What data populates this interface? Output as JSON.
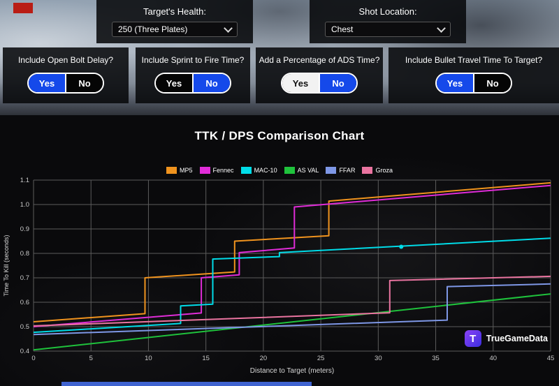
{
  "controls": {
    "targets_health": {
      "label": "Target's Health:",
      "value": "250 (Three Plates)"
    },
    "shot_location": {
      "label": "Shot Location:",
      "value": "Chest"
    }
  },
  "toggles": [
    {
      "label": "Include Open Bolt Delay?",
      "yes_label": "Yes",
      "no_label": "No",
      "yes_state": "blue",
      "no_state": "black",
      "selected": "Yes"
    },
    {
      "label": "Include Sprint to Fire Time?",
      "yes_label": "Yes",
      "no_label": "No",
      "yes_state": "black",
      "no_state": "blue",
      "selected": "No"
    },
    {
      "label": "Add a Percentage of ADS Time?",
      "yes_label": "Yes",
      "no_label": "No",
      "yes_state": "white",
      "no_state": "blue",
      "selected": "No"
    },
    {
      "label": "Include Bullet Travel Time To Target?",
      "yes_label": "Yes",
      "no_label": "No",
      "yes_state": "blue",
      "no_state": "black",
      "selected": "Yes"
    }
  ],
  "colors": {
    "toggle_active": "#1549ea",
    "logo_purple_1": "#8a42f5",
    "logo_purple_2": "#3c2ee0"
  },
  "logo": {
    "mark": "T",
    "text": "TrueGameData"
  },
  "chart_data": {
    "type": "line",
    "title": "TTK / DPS Comparison Chart",
    "xlabel": "Distance to Target (meters)",
    "ylabel": "Time To Kill (seconds)",
    "xlim": [
      0,
      45
    ],
    "ylim": [
      0.4,
      1.1
    ],
    "x_ticks": [
      0,
      5,
      10,
      15,
      20,
      25,
      30,
      35,
      40,
      45
    ],
    "y_ticks": [
      0.4,
      0.5,
      0.6,
      0.7,
      0.8,
      0.9,
      1.0,
      1.1
    ],
    "grid": true,
    "legend_position": "top-center",
    "series": [
      {
        "name": "MP5",
        "color": "#f0931e",
        "points": [
          [
            0,
            0.52
          ],
          [
            9.7,
            0.553
          ],
          [
            9.7,
            0.7
          ],
          [
            17.5,
            0.724
          ],
          [
            17.5,
            0.85
          ],
          [
            25.7,
            0.872
          ],
          [
            25.7,
            1.014
          ],
          [
            45,
            1.089
          ]
        ]
      },
      {
        "name": "Fennec",
        "color": "#e02cd8",
        "points": [
          [
            0,
            0.5
          ],
          [
            14.6,
            0.556
          ],
          [
            14.6,
            0.7
          ],
          [
            17.9,
            0.712
          ],
          [
            17.9,
            0.803
          ],
          [
            22.7,
            0.822
          ],
          [
            22.7,
            0.99
          ],
          [
            45,
            1.078
          ]
        ]
      },
      {
        "name": "MAC-10",
        "color": "#00dce8",
        "points": [
          [
            0,
            0.477
          ],
          [
            12.8,
            0.513
          ],
          [
            12.8,
            0.585
          ],
          [
            15.6,
            0.592
          ],
          [
            15.6,
            0.777
          ],
          [
            21.4,
            0.787
          ],
          [
            21.4,
            0.803
          ],
          [
            45,
            0.862
          ]
        ],
        "marker": [
          32,
          0.827
        ]
      },
      {
        "name": "AS VAL",
        "color": "#1fc23c",
        "points": [
          [
            0,
            0.405
          ],
          [
            45,
            0.634
          ]
        ]
      },
      {
        "name": "FFAR",
        "color": "#7e97e6",
        "points": [
          [
            0,
            0.468
          ],
          [
            36,
            0.527
          ],
          [
            36,
            0.664
          ],
          [
            45,
            0.675
          ]
        ]
      },
      {
        "name": "Groza",
        "color": "#ea74a0",
        "points": [
          [
            0,
            0.503
          ],
          [
            31,
            0.557
          ],
          [
            31,
            0.689
          ],
          [
            45,
            0.706
          ]
        ]
      }
    ]
  }
}
